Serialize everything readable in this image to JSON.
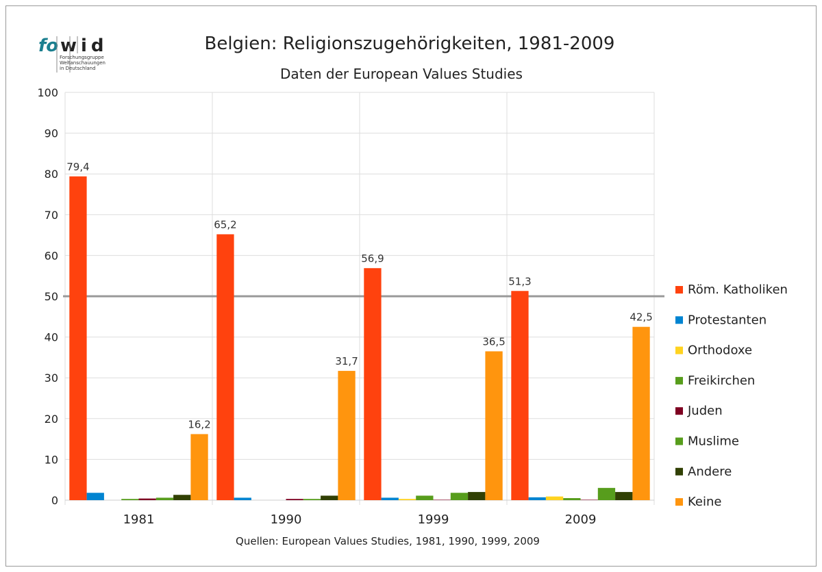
{
  "logo": {
    "text_fo": "fo",
    "text_wid": "wid",
    "subtitle_lines": [
      "Forschungsgruppe",
      "Weltanschauungen",
      "in Deutschland"
    ]
  },
  "chart_data": {
    "type": "bar",
    "title": "Belgien: Religionszugehörigkeiten, 1981-2009",
    "subtitle": "Daten der European Values Studies",
    "source": "Quellen: European Values Studies, 1981, 1990, 1999, 2009",
    "categories": [
      "1981",
      "1990",
      "1999",
      "2009"
    ],
    "ylim": [
      0,
      100
    ],
    "yticks": [
      0,
      10,
      20,
      30,
      40,
      50,
      60,
      70,
      80,
      90,
      100
    ],
    "reference_line": 50,
    "grid": true,
    "legend_position": "right",
    "series": [
      {
        "name": "Röm. Katholiken",
        "color": "#ff420e",
        "values": [
          79.4,
          65.2,
          56.9,
          51.3
        ],
        "labels": [
          "79,4",
          "65,2",
          "56,9",
          "51,3"
        ]
      },
      {
        "name": "Protestanten",
        "color": "#0084d1",
        "values": [
          1.8,
          0.6,
          0.6,
          0.7
        ]
      },
      {
        "name": "Orthodoxe",
        "color": "#ffd320",
        "values": [
          0,
          0,
          0.3,
          0.9
        ]
      },
      {
        "name": "Freikirchen",
        "color": "#579d1c",
        "values": [
          0.3,
          0,
          1.1,
          0.5
        ]
      },
      {
        "name": "Juden",
        "color": "#7e0021",
        "values": [
          0.4,
          0.3,
          0.1,
          0.1
        ]
      },
      {
        "name": "Muslime",
        "color": "#579d1c",
        "values": [
          0.6,
          0.3,
          1.8,
          3.0
        ]
      },
      {
        "name": "Andere",
        "color": "#314004",
        "values": [
          1.3,
          1.1,
          2.0,
          2.0
        ]
      },
      {
        "name": "Keine",
        "color": "#ff950e",
        "values": [
          16.2,
          31.7,
          36.5,
          42.5
        ],
        "labels": [
          "16,2",
          "31,7",
          "36,5",
          "42,5"
        ]
      }
    ]
  }
}
